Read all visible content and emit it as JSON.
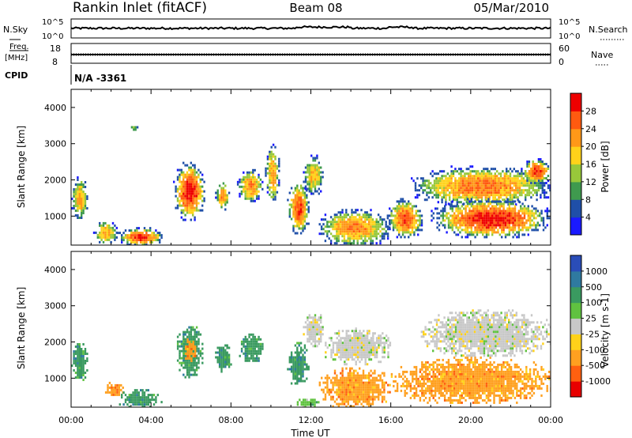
{
  "header": {
    "station": "Rankin Inlet (fitACF)",
    "beam": "Beam 08",
    "date": "05/Mar/2010"
  },
  "top_panel": {
    "nsky_label": "N.Sky",
    "nsearch_label": "N.Search",
    "nsky_ticks": [
      "10^5",
      "10^0"
    ],
    "nsearch_ticks": [
      "10^5",
      "10^0"
    ],
    "freq_label_1": "Freq.",
    "freq_label_2": "[MHz]",
    "freq_ticks": [
      "18",
      "8"
    ],
    "nave_label": "Nave",
    "nave_ticks": [
      "60",
      "0"
    ],
    "cpid_label": "CPID",
    "cpid_value": "N/A -3361"
  },
  "colors": {
    "power": [
      "#1a1aff",
      "#1f4fa8",
      "#3f9a4e",
      "#98c83a",
      "#ffd21a",
      "#ff9818",
      "#ff5a10",
      "#ee0000"
    ],
    "velocity": [
      "#2a4db8",
      "#2f7aa0",
      "#3a9a60",
      "#60c240",
      "#c8c8c8",
      "#ffd21a",
      "#ffa020",
      "#ff6010",
      "#e80000"
    ]
  },
  "chart_data": [
    {
      "type": "heatmap",
      "name": "power",
      "ylabel": "Slant Range [km]",
      "yticks": [
        "1000",
        "2000",
        "3000",
        "4000"
      ],
      "ylim": [
        200,
        4500
      ],
      "colorbar_label": "Power [dB]",
      "colorbar_ticks": [
        "4",
        "8",
        "12",
        "16",
        "20",
        "24",
        "28"
      ],
      "colorbar_range": [
        0,
        32
      ],
      "xlim": [
        0,
        24
      ],
      "patches": [
        {
          "t": [
            0.0,
            0.8
          ],
          "r": [
            900,
            2100
          ],
          "peak": 20
        },
        {
          "t": [
            1.1,
            2.3
          ],
          "r": [
            250,
            900
          ],
          "peak": 20
        },
        {
          "t": [
            2.3,
            4.6
          ],
          "r": [
            200,
            700
          ],
          "peak": 28
        },
        {
          "t": [
            2.9,
            3.3
          ],
          "r": [
            3350,
            3550
          ],
          "peak": 8
        },
        {
          "t": [
            5.1,
            6.7
          ],
          "r": [
            900,
            2500
          ],
          "peak": 30
        },
        {
          "t": [
            7.2,
            7.9
          ],
          "r": [
            1200,
            2000
          ],
          "peak": 22
        },
        {
          "t": [
            8.3,
            9.6
          ],
          "r": [
            1400,
            2300
          ],
          "peak": 22
        },
        {
          "t": [
            9.7,
            10.4
          ],
          "r": [
            1400,
            3000
          ],
          "peak": 20
        },
        {
          "t": [
            10.8,
            11.9
          ],
          "r": [
            500,
            2000
          ],
          "peak": 26
        },
        {
          "t": [
            11.6,
            12.6
          ],
          "r": [
            1600,
            2700
          ],
          "peak": 18
        },
        {
          "t": [
            12.3,
            16.0
          ],
          "r": [
            200,
            1200
          ],
          "peak": 22
        },
        {
          "t": [
            15.8,
            17.6
          ],
          "r": [
            400,
            1500
          ],
          "peak": 26
        },
        {
          "t": [
            17.0,
            24.0
          ],
          "r": [
            1300,
            2400
          ],
          "peak": 24
        },
        {
          "t": [
            18.0,
            24.0
          ],
          "r": [
            400,
            1500
          ],
          "peak": 30
        },
        {
          "t": [
            22.5,
            24.0
          ],
          "r": [
            1900,
            2600
          ],
          "peak": 28
        }
      ]
    },
    {
      "type": "heatmap",
      "name": "velocity",
      "ylabel": "Slant Range [km]",
      "yticks": [
        "1000",
        "2000",
        "3000",
        "4000"
      ],
      "ylim": [
        200,
        4500
      ],
      "xlabel": "Time UT",
      "xticks": [
        "00:00",
        "04:00",
        "08:00",
        "12:00",
        "16:00",
        "20:00",
        "00:00"
      ],
      "colorbar_label": "Velocity [m s-1]",
      "colorbar_ticks": [
        "1000",
        "500",
        "100",
        "25",
        "-25",
        "-100",
        "-500",
        "-1000"
      ],
      "xlim": [
        0,
        24
      ],
      "patches": [
        {
          "t": [
            0.0,
            0.8
          ],
          "r": [
            900,
            2100
          ],
          "cls": 2
        },
        {
          "t": [
            1.6,
            2.6
          ],
          "r": [
            500,
            900
          ],
          "cls": 6
        },
        {
          "t": [
            2.3,
            4.5
          ],
          "r": [
            200,
            700
          ],
          "cls": 2
        },
        {
          "t": [
            5.2,
            6.6
          ],
          "r": [
            1000,
            2500
          ],
          "cls": 2
        },
        {
          "t": [
            5.6,
            6.2
          ],
          "r": [
            1500,
            2100
          ],
          "cls": 6
        },
        {
          "t": [
            7.2,
            8.0
          ],
          "r": [
            1200,
            2000
          ],
          "cls": 2
        },
        {
          "t": [
            8.4,
            9.6
          ],
          "r": [
            1400,
            2300
          ],
          "cls": 2
        },
        {
          "t": [
            10.8,
            11.9
          ],
          "r": [
            800,
            2000
          ],
          "cls": 2
        },
        {
          "t": [
            11.6,
            12.6
          ],
          "r": [
            1900,
            2900
          ],
          "cls": 4
        },
        {
          "t": [
            12.4,
            16.0
          ],
          "r": [
            200,
            1300
          ],
          "cls": 6
        },
        {
          "t": [
            12.6,
            16.0
          ],
          "r": [
            1400,
            2400
          ],
          "cls": 4
        },
        {
          "t": [
            16.0,
            24.0
          ],
          "r": [
            300,
            1600
          ],
          "cls": 6
        },
        {
          "t": [
            17.5,
            24.0
          ],
          "r": [
            1600,
            2900
          ],
          "cls": 4
        },
        {
          "t": [
            11.2,
            12.4
          ],
          "r": [
            200,
            500
          ],
          "cls": 3
        }
      ]
    }
  ]
}
